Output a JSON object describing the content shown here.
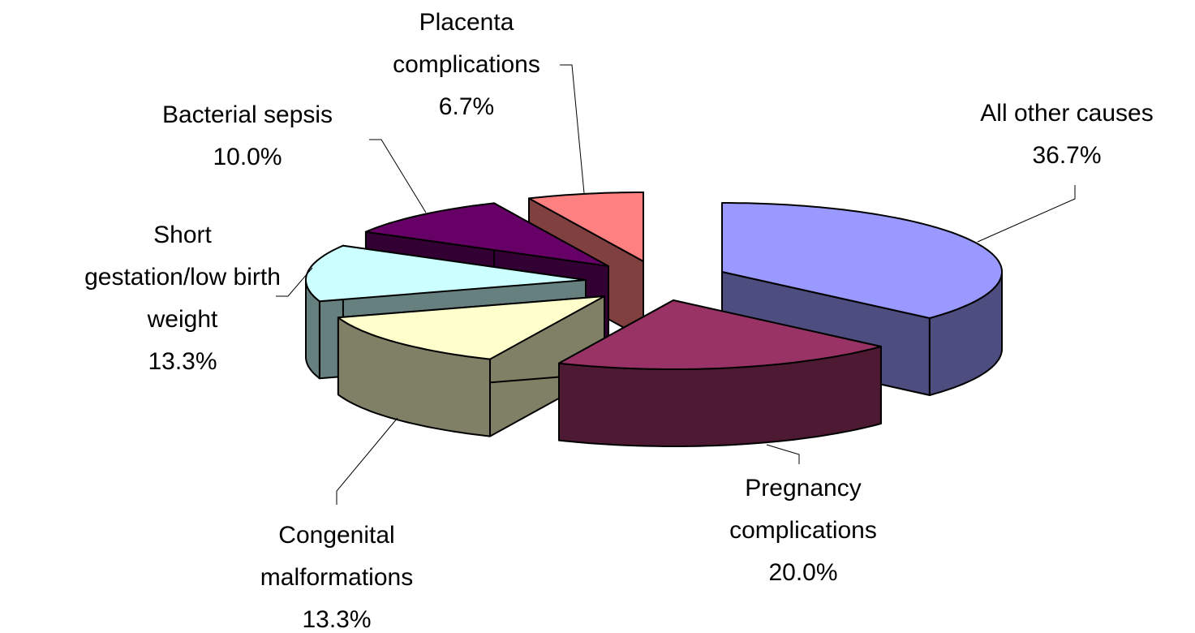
{
  "chart_data": {
    "type": "pie",
    "categories": [
      "All other causes",
      "Pregnancy complications",
      "Congenital malformations",
      "Short gestation/low birth weight",
      "Bacterial sepsis",
      "Placenta complications"
    ],
    "values": [
      36.7,
      20.0,
      13.3,
      13.3,
      10.0,
      6.7
    ],
    "value_labels": [
      "36.7%",
      "20.0%",
      "13.3%",
      "13.3%",
      "10.0%",
      "6.7%"
    ],
    "colors": [
      "#9999ff",
      "#993366",
      "#ffffcc",
      "#ccffff",
      "#660066",
      "#ff8080"
    ]
  }
}
